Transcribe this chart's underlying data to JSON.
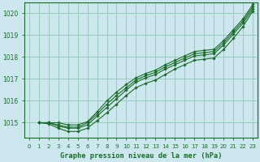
{
  "title": "Graphe pression niveau de la mer (hPa)",
  "background_color": "#cce8ee",
  "grid_color": "#99ccbb",
  "line_color": "#1a6b2a",
  "xlim": [
    -0.5,
    23.5
  ],
  "ylim": [
    1014.3,
    1020.5
  ],
  "yticks": [
    1015,
    1016,
    1017,
    1018,
    1019,
    1020
  ],
  "xticks": [
    0,
    1,
    2,
    3,
    4,
    5,
    6,
    7,
    8,
    9,
    10,
    11,
    12,
    13,
    14,
    15,
    16,
    17,
    18,
    19,
    20,
    21,
    22,
    23
  ],
  "series": [
    {
      "x": [
        1,
        2,
        3,
        4,
        5,
        6,
        7,
        8,
        9,
        10,
        11,
        12,
        13,
        14,
        15,
        16,
        17,
        18,
        19,
        20,
        21,
        22,
        23
      ],
      "y": [
        1015.0,
        1015.0,
        1014.85,
        1014.75,
        1014.75,
        1014.9,
        1015.3,
        1015.7,
        1016.1,
        1016.5,
        1016.85,
        1017.05,
        1017.2,
        1017.45,
        1017.65,
        1017.85,
        1018.05,
        1018.1,
        1018.15,
        1018.55,
        1019.05,
        1019.55,
        1020.2
      ]
    },
    {
      "x": [
        1,
        2,
        3,
        4,
        5,
        6,
        7,
        8,
        9,
        10,
        11,
        12,
        13,
        14,
        15,
        16,
        17,
        18,
        19,
        20,
        21,
        22,
        23
      ],
      "y": [
        1015.0,
        1015.0,
        1014.9,
        1014.8,
        1014.8,
        1015.0,
        1015.4,
        1015.85,
        1016.25,
        1016.6,
        1016.95,
        1017.15,
        1017.3,
        1017.55,
        1017.75,
        1017.95,
        1018.15,
        1018.2,
        1018.25,
        1018.65,
        1019.15,
        1019.65,
        1020.3
      ]
    },
    {
      "x": [
        1,
        2,
        3,
        4,
        5,
        6,
        7,
        8,
        9,
        10,
        11,
        12,
        13,
        14,
        15,
        16,
        17,
        18,
        19,
        20,
        21,
        22,
        23
      ],
      "y": [
        1015.0,
        1015.0,
        1015.0,
        1014.9,
        1014.9,
        1015.05,
        1015.5,
        1016.0,
        1016.4,
        1016.75,
        1017.05,
        1017.25,
        1017.4,
        1017.65,
        1017.85,
        1018.05,
        1018.25,
        1018.3,
        1018.35,
        1018.75,
        1019.25,
        1019.75,
        1020.4
      ]
    },
    {
      "x": [
        1,
        2,
        3,
        4,
        5,
        6,
        7,
        8,
        9,
        10,
        11,
        12,
        13,
        14,
        15,
        16,
        17,
        18,
        19,
        20,
        21,
        22,
        23
      ],
      "y": [
        1015.0,
        1014.95,
        1014.75,
        1014.6,
        1014.6,
        1014.75,
        1015.1,
        1015.45,
        1015.85,
        1016.25,
        1016.6,
        1016.8,
        1016.95,
        1017.2,
        1017.45,
        1017.65,
        1017.85,
        1017.9,
        1017.95,
        1018.35,
        1018.85,
        1019.4,
        1020.1
      ]
    }
  ]
}
